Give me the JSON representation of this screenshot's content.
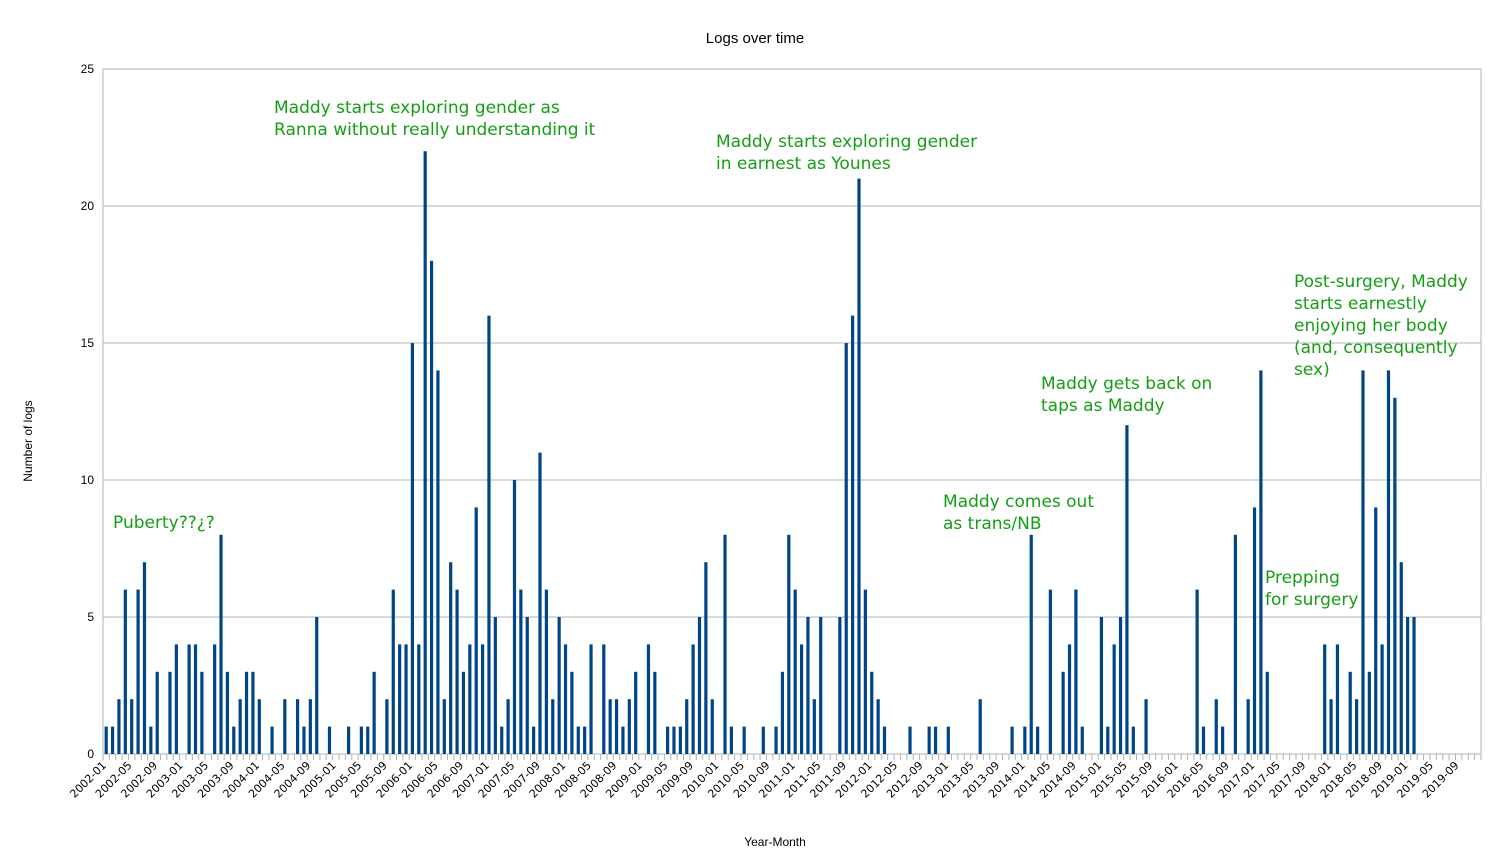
{
  "chart_data": {
    "type": "bar",
    "title": "Logs over time",
    "xlabel": "Year-Month",
    "ylabel": "Number of logs",
    "x_range": [
      "2002-01",
      "2019-12"
    ],
    "ylim": [
      0,
      25
    ],
    "y_ticks": [
      0,
      5,
      10,
      15,
      20,
      25
    ],
    "grid": true,
    "legend": "none",
    "bar_color": "#004586",
    "annotation_color": "#159e15",
    "tick_labels": [
      "2002-01",
      "2002-05",
      "2002-09",
      "2003-01",
      "2003-05",
      "2003-09",
      "2004-01",
      "2004-05",
      "2004-09",
      "2005-01",
      "2005-05",
      "2005-09",
      "2006-01",
      "2006-05",
      "2006-09",
      "2007-01",
      "2007-05",
      "2007-09",
      "2008-01",
      "2008-05",
      "2008-09",
      "2009-01",
      "2009-05",
      "2009-09",
      "2010-01",
      "2010-05",
      "2010-09",
      "2011-01",
      "2011-05",
      "2011-09",
      "2012-01",
      "2012-05",
      "2012-09",
      "2013-01",
      "2013-05",
      "2013-09",
      "2014-01",
      "2014-05",
      "2014-09",
      "2015-01",
      "2015-05",
      "2015-09",
      "2016-01",
      "2016-05",
      "2016-09",
      "2017-01",
      "2017-05",
      "2017-09",
      "2018-01",
      "2018-05",
      "2018-09",
      "2019-01",
      "2019-05",
      "2019-09"
    ],
    "values": [
      1,
      1,
      2,
      6,
      2,
      6,
      7,
      1,
      3,
      0,
      3,
      4,
      0,
      4,
      4,
      3,
      0,
      4,
      8,
      3,
      1,
      2,
      3,
      3,
      2,
      0,
      1,
      0,
      2,
      0,
      2,
      1,
      2,
      5,
      0,
      1,
      0,
      0,
      1,
      0,
      1,
      1,
      3,
      0,
      2,
      6,
      4,
      4,
      15,
      4,
      22,
      18,
      14,
      2,
      7,
      6,
      3,
      4,
      9,
      4,
      16,
      5,
      1,
      2,
      10,
      6,
      5,
      1,
      11,
      6,
      2,
      5,
      4,
      3,
      1,
      1,
      4,
      0,
      4,
      2,
      2,
      1,
      2,
      3,
      0,
      4,
      3,
      0,
      1,
      1,
      1,
      2,
      4,
      5,
      7,
      2,
      0,
      8,
      1,
      0,
      1,
      0,
      0,
      1,
      0,
      1,
      3,
      8,
      6,
      4,
      5,
      2,
      5,
      0,
      0,
      5,
      15,
      16,
      21,
      6,
      3,
      2,
      1,
      0,
      0,
      0,
      1,
      0,
      0,
      1,
      1,
      0,
      1,
      0,
      0,
      0,
      0,
      2,
      0,
      0,
      0,
      0,
      1,
      0,
      1,
      8,
      1,
      0,
      6,
      0,
      3,
      4,
      6,
      1,
      0,
      0,
      5,
      1,
      4,
      5,
      12,
      1,
      0,
      2,
      0,
      0,
      0,
      0,
      0,
      0,
      0,
      6,
      1,
      0,
      2,
      1,
      0,
      8,
      0,
      2,
      9,
      14,
      3,
      0,
      0,
      0,
      0,
      0,
      0,
      0,
      0,
      4,
      2,
      4,
      0,
      3,
      2,
      14,
      3,
      9,
      4,
      14,
      13,
      7,
      5,
      5,
      0,
      0,
      0,
      0,
      0,
      0,
      0,
      0,
      0,
      0
    ],
    "annotations": [
      {
        "lines": [
          "Puberty??¿?"
        ]
      },
      {
        "lines": [
          "Maddy starts exploring gender as",
          "Ranna without really understanding it"
        ]
      },
      {
        "lines": [
          "Maddy starts exploring gender",
          "in earnest as Younes"
        ]
      },
      {
        "lines": [
          "Maddy comes out",
          "as trans/NB"
        ]
      },
      {
        "lines": [
          "Maddy gets back on",
          "taps as Maddy"
        ]
      },
      {
        "lines": [
          "Prepping",
          "for surgery"
        ]
      },
      {
        "lines": [
          "Post-surgery, Maddy",
          "starts earnestly",
          "enjoying her body",
          "(and, consequently",
          "sex)"
        ]
      }
    ]
  }
}
